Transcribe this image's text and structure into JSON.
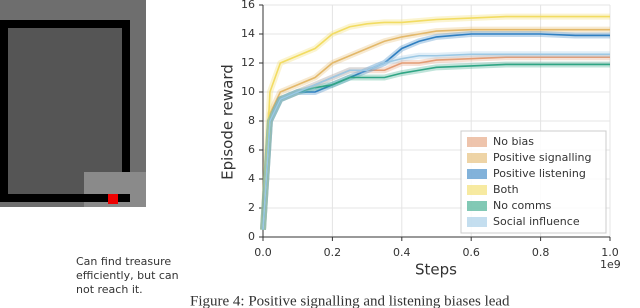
{
  "chart_data": {
    "type": "line",
    "ylabel": "Episode reward",
    "xlabel": "Steps",
    "x_offset_label": "1e9",
    "x": [
      0,
      0.02,
      0.05,
      0.1,
      0.15,
      0.2,
      0.25,
      0.3,
      0.35,
      0.4,
      0.45,
      0.5,
      0.6,
      0.7,
      0.8,
      0.9,
      1.0
    ],
    "series": [
      {
        "name": "No bias",
        "color": "#e39c74",
        "values": [
          0.5,
          8,
          9.5,
          10,
          10.5,
          11,
          11.5,
          11.5,
          11.5,
          12,
          12,
          12.2,
          12.3,
          12.4,
          12.4,
          12.4,
          12.4
        ]
      },
      {
        "name": "Positive signalling",
        "color": "#e3b86a",
        "values": [
          0.5,
          8.5,
          10,
          10.5,
          11,
          12,
          12.5,
          13,
          13.5,
          13.8,
          14,
          14.2,
          14.3,
          14.3,
          14.3,
          14.3,
          14.3
        ]
      },
      {
        "name": "Positive listening",
        "color": "#2f7fc1",
        "values": [
          0.5,
          8,
          9.5,
          10,
          10,
          10.5,
          11,
          11.5,
          12,
          13,
          13.5,
          13.8,
          14,
          14,
          14,
          13.9,
          13.9
        ]
      },
      {
        "name": "Both",
        "color": "#f2dc62",
        "values": [
          0.5,
          10,
          12,
          12.5,
          13,
          14,
          14.5,
          14.7,
          14.8,
          14.8,
          14.9,
          15,
          15.1,
          15.2,
          15.2,
          15.2,
          15.2
        ]
      },
      {
        "name": "No comms",
        "color": "#2fa584",
        "values": [
          0.5,
          8,
          9.5,
          10,
          10.3,
          10.5,
          11,
          11,
          11,
          11.3,
          11.5,
          11.7,
          11.8,
          11.9,
          11.9,
          11.9,
          11.9
        ]
      },
      {
        "name": "Social influence",
        "color": "#9cc8e4",
        "values": [
          0.5,
          8,
          9.5,
          10,
          10.5,
          11,
          11.5,
          11.5,
          12,
          12.3,
          12.5,
          12.5,
          12.6,
          12.6,
          12.6,
          12.6,
          12.6
        ]
      }
    ],
    "xlim": [
      0,
      1.0
    ],
    "ylim": [
      0,
      16
    ],
    "xticks": [
      {
        "value": 0,
        "label": "0.0"
      },
      0.2,
      0.4,
      0.6,
      0.8,
      {
        "value": 1.0,
        "label": "1.0"
      }
    ],
    "yticks": [
      0,
      2,
      4,
      6,
      8,
      10,
      12,
      14,
      16
    ],
    "grid": true,
    "legend": "lower right"
  },
  "panel_caption": [
    "Can find treasure",
    "efficiently, but can",
    "not reach it."
  ],
  "figure_caption": "Figure 4: Positive signalling and listening biases lead"
}
